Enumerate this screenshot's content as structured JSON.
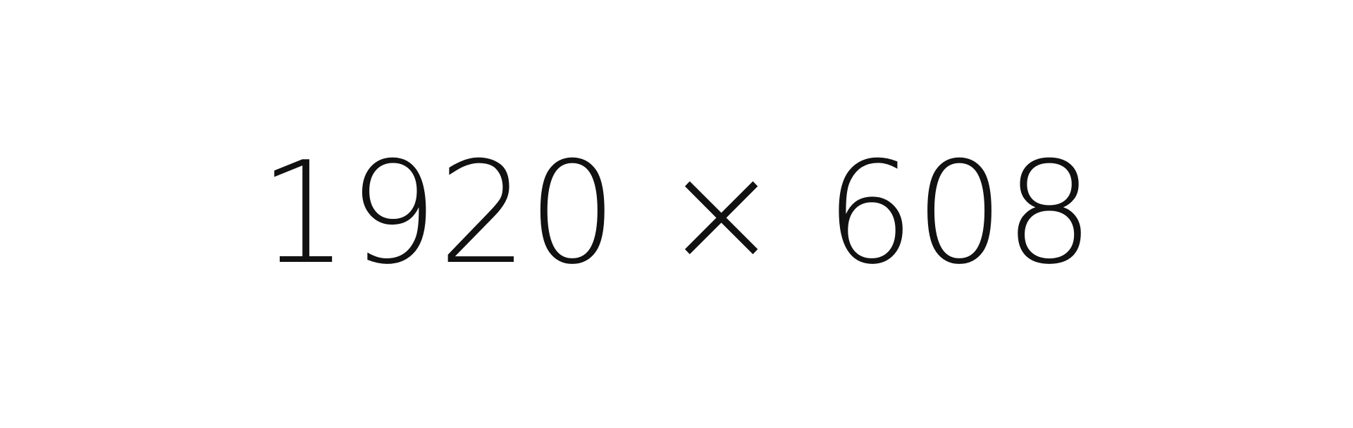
{
  "placeholder": {
    "text": "1920 × 608",
    "background_color": "#ffffff",
    "text_color": "#111111"
  }
}
